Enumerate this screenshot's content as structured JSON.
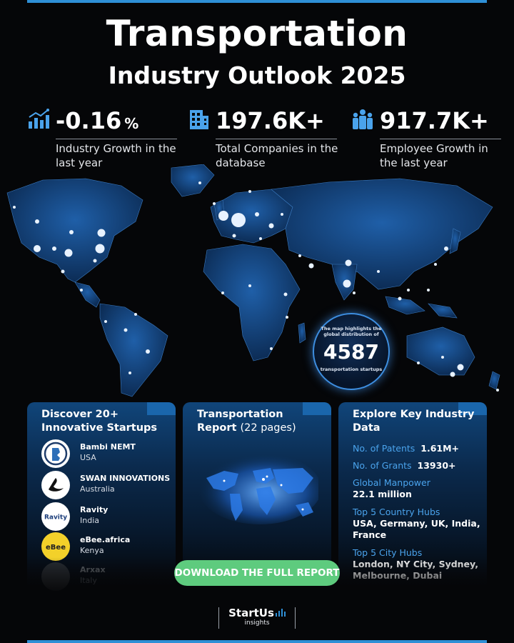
{
  "header": {
    "title": "Transportation",
    "subtitle": "Industry Outlook 2025"
  },
  "stats": [
    {
      "icon": "bar-chart-icon",
      "value": "-0.16",
      "unit": "%",
      "desc": "Industry Growth in the last year"
    },
    {
      "icon": "building-icon",
      "value": "197.6K+",
      "unit": "",
      "desc": "Total Companies in the database"
    },
    {
      "icon": "people-icon",
      "value": "917.7K+",
      "unit": "",
      "desc": "Employee Growth in the last year"
    }
  ],
  "map_callout": {
    "text": "The map highlights the global distribution of",
    "number": "4587",
    "suffix": "transportation startups"
  },
  "startups_card": {
    "title": "Discover 20+ Innovative Startups",
    "items": [
      {
        "name": "Bambi NEMT",
        "country": "USA"
      },
      {
        "name": "SWAN INNOVATIONS",
        "country": "Australia"
      },
      {
        "name": "Ravity",
        "country": "India",
        "logo_text": "Ravity"
      },
      {
        "name": "eBee.africa",
        "country": "Kenya",
        "logo_text": "eBee"
      },
      {
        "name": "Arxax",
        "country": "Italy"
      }
    ]
  },
  "report_card": {
    "title": "Transportation",
    "title_bold2": "Report",
    "pages": "(22 pages)"
  },
  "data_card": {
    "title": "Explore Key Industry Data",
    "patents_label": "No. of Patents",
    "patents_value": "1.61M+",
    "grants_label": "No. of Grants",
    "grants_value": "13930+",
    "manpower_label": "Global Manpower",
    "manpower_value": "22.1 million",
    "country_hubs_label": "Top 5 Country Hubs",
    "country_hubs_value": "USA, Germany, UK, India, France",
    "city_hubs_label": "Top 5 City Hubs",
    "city_hubs_value": "London, NY City, Sydney, Melbourne, Dubai"
  },
  "download_button": "DOWNLOAD THE FULL REPORT",
  "brand": {
    "name": "StartUs",
    "tagline": "insights"
  },
  "colors": {
    "accent_blue": "#2e8fd6",
    "label_blue": "#4aa3ec",
    "button_green": "#5ecb7e",
    "background": "#050608"
  }
}
